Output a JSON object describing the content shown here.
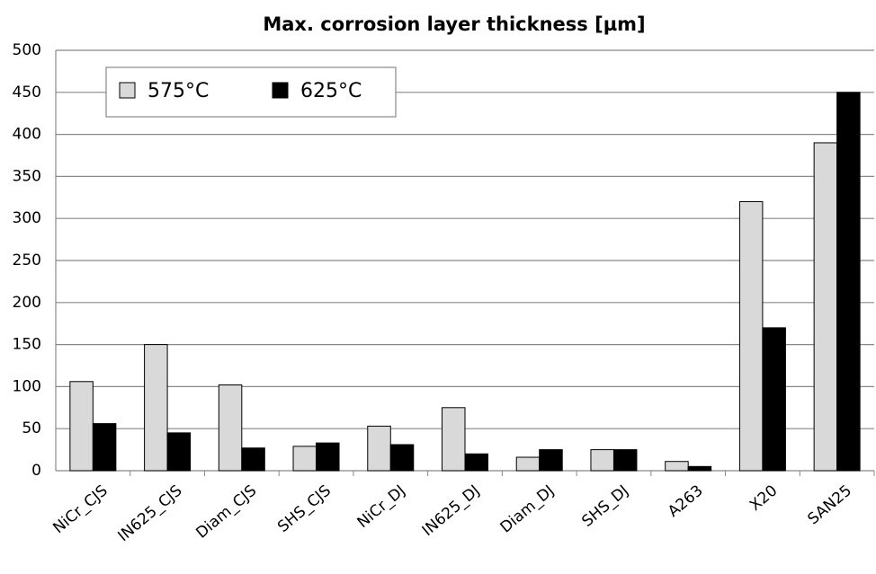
{
  "chart_data": {
    "type": "bar",
    "title": "Max. corrosion layer thickness [µm]",
    "categories": [
      "NiCr_CJS",
      "IN625_CJS",
      "Diam_CJS",
      "SHS_CJS",
      "NiCr_DJ",
      "IN625_DJ",
      "Diam_DJ",
      "SHS_DJ",
      "A263",
      "X20",
      "SAN25"
    ],
    "series": [
      {
        "name": "575°C",
        "color": "#d9d9d9",
        "values": [
          106,
          150,
          102,
          29,
          53,
          75,
          16,
          25,
          11,
          320,
          390
        ]
      },
      {
        "name": "625°C",
        "color": "#000000",
        "values": [
          56,
          45,
          27,
          33,
          31,
          20,
          25,
          25,
          5,
          170,
          450
        ]
      }
    ],
    "ylim": [
      0,
      500
    ],
    "yticks": [
      0,
      50,
      100,
      150,
      200,
      250,
      300,
      350,
      400,
      450,
      500
    ],
    "grid": true,
    "legend": "top-left"
  }
}
